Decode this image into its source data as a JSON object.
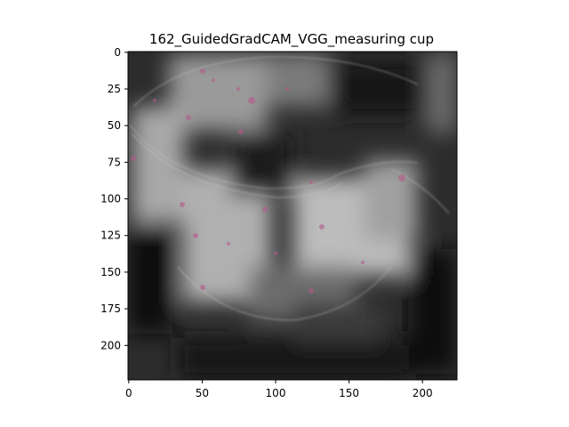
{
  "figure": {
    "title": "162_GuidedGradCAM_VGG_measuring cup",
    "image_subject": "measuring cup",
    "image_kind": "saliency-map-overlay",
    "image_size": [
      224,
      224
    ]
  },
  "axes": {
    "x": {
      "ticks": [
        {
          "value": 0,
          "label": "0"
        },
        {
          "value": 50,
          "label": "50"
        },
        {
          "value": 100,
          "label": "100"
        },
        {
          "value": 150,
          "label": "150"
        },
        {
          "value": 200,
          "label": "200"
        }
      ]
    },
    "y": {
      "ticks": [
        {
          "value": 0,
          "label": "0"
        },
        {
          "value": 25,
          "label": "25"
        },
        {
          "value": 50,
          "label": "50"
        },
        {
          "value": 75,
          "label": "75"
        },
        {
          "value": 100,
          "label": "100"
        },
        {
          "value": 125,
          "label": "125"
        },
        {
          "value": 150,
          "label": "150"
        },
        {
          "value": 175,
          "label": "175"
        },
        {
          "value": 200,
          "label": "200"
        }
      ]
    }
  },
  "colors": {
    "background": "#ffffff",
    "frame": "#000000",
    "dark": "#0a0a0a",
    "gray_mid": "#5a5a5a",
    "gray_light": "#b4b4b4",
    "speckle": "#b45a8c"
  }
}
